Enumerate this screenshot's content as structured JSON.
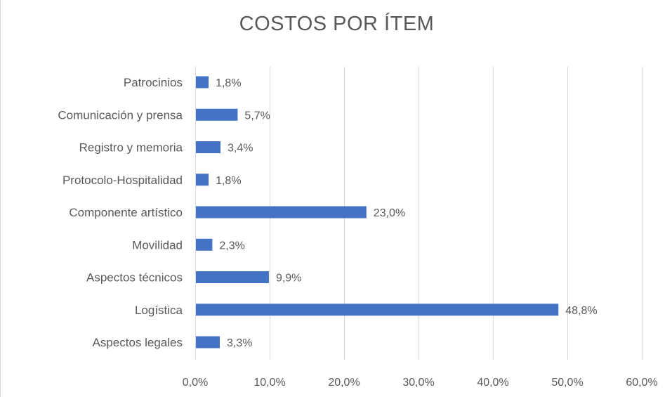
{
  "chart_data": {
    "type": "bar",
    "orientation": "horizontal",
    "title": "COSTOS POR ÍTEM",
    "categories": [
      "Patrocinios",
      "Comunicación y prensa",
      "Registro y memoria",
      "Protocolo-Hospitalidad",
      "Componente artístico",
      "Movilidad",
      "Aspectos técnicos",
      "Logística",
      "Aspectos legales"
    ],
    "values": [
      1.8,
      5.7,
      3.4,
      1.8,
      23.0,
      2.3,
      9.9,
      48.8,
      3.3
    ],
    "data_labels": [
      "1,8%",
      "5,7%",
      "3,4%",
      "1,8%",
      "23,0%",
      "2,3%",
      "9,9%",
      "48,8%",
      "3,3%"
    ],
    "xlim": [
      0,
      60
    ],
    "x_ticks": [
      0,
      10,
      20,
      30,
      40,
      50,
      60
    ],
    "x_tick_labels": [
      "0,0%",
      "10,0%",
      "20,0%",
      "30,0%",
      "40,0%",
      "50,0%",
      "60,0%"
    ],
    "xlabel": "",
    "ylabel": "",
    "grid": "vertical",
    "legend": "none",
    "bar_color": "#4472c4"
  }
}
